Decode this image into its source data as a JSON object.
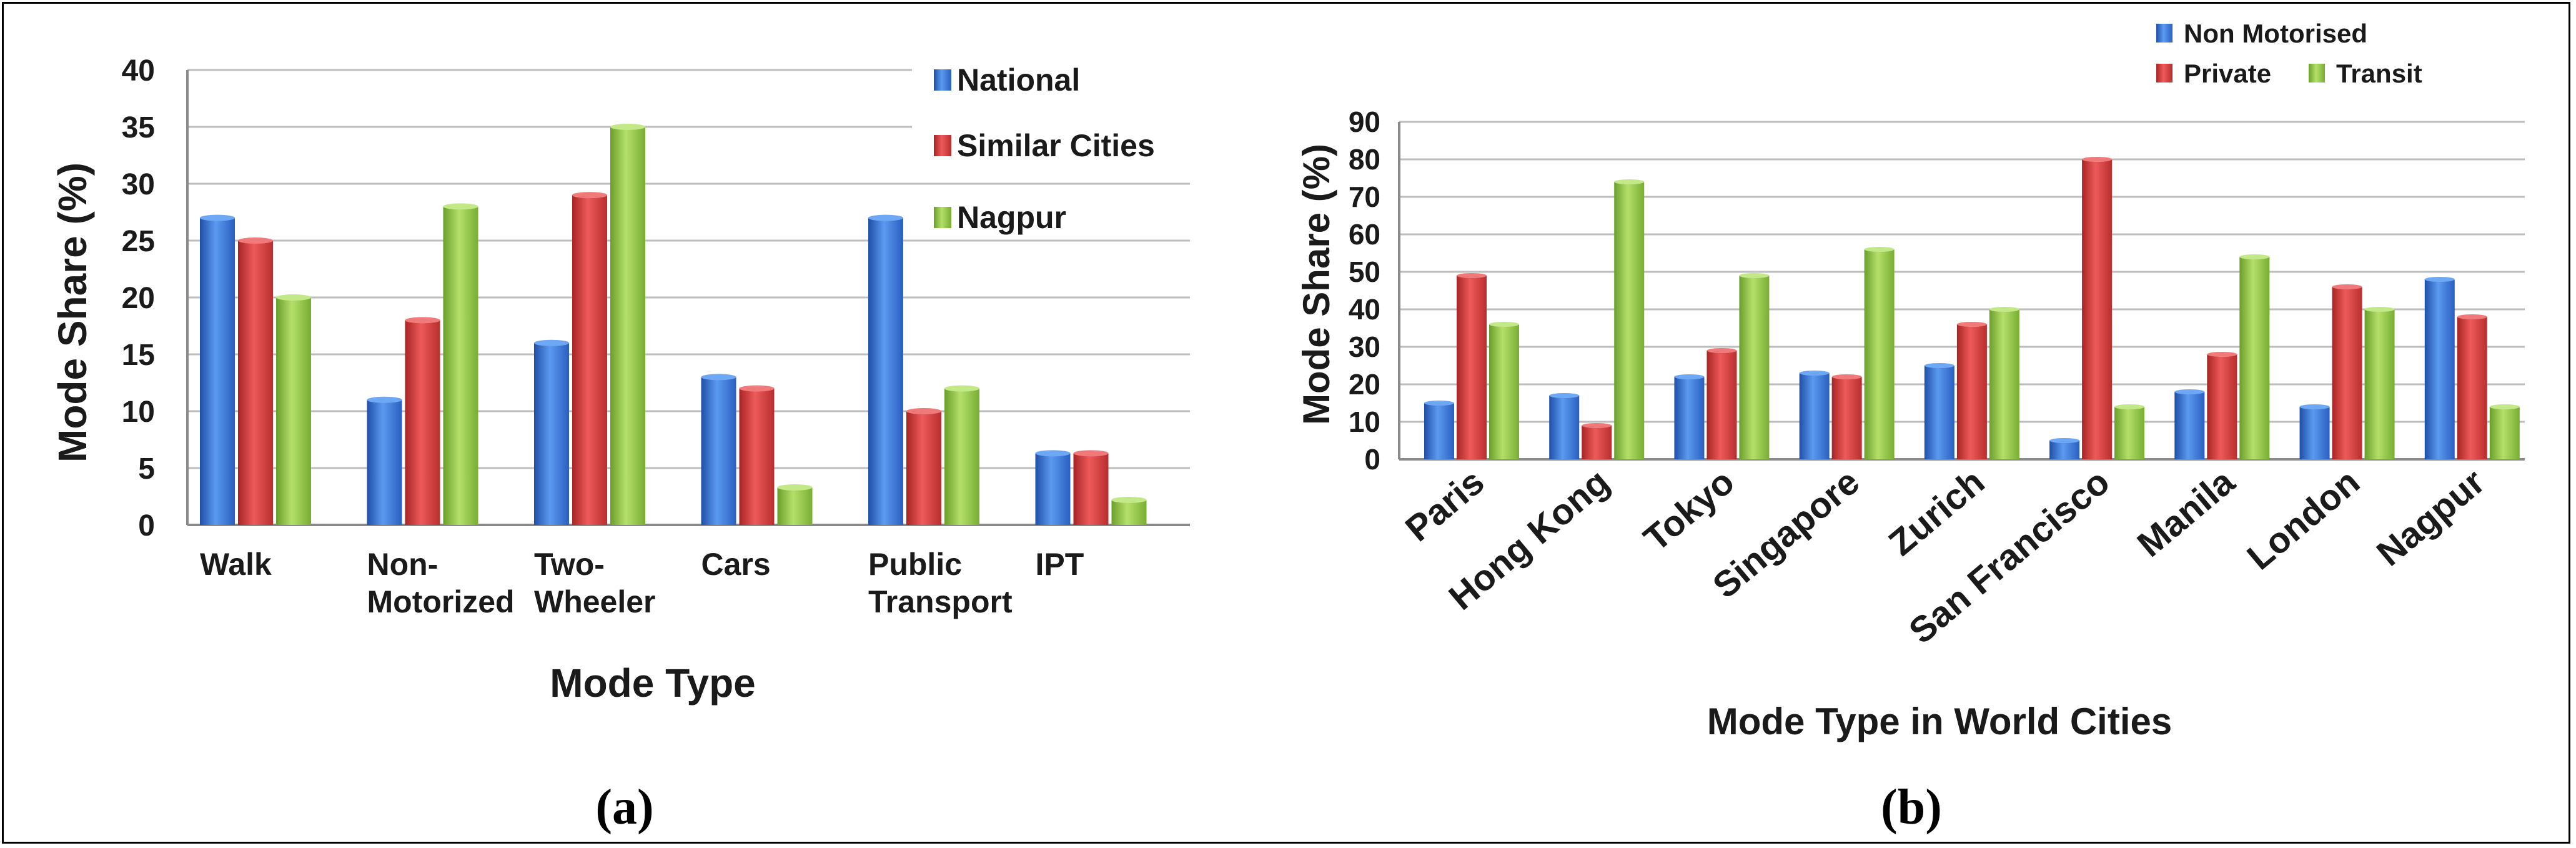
{
  "chart_data": [
    {
      "type": "bar",
      "title": "",
      "panel_label": "(a)",
      "xlabel": "Mode Type",
      "ylabel": "Mode Share (%)",
      "ylim": [
        0,
        40
      ],
      "yticks": [
        0,
        5,
        10,
        15,
        20,
        25,
        30,
        35,
        40
      ],
      "grid": true,
      "legend_position": "top-right",
      "categories": [
        [
          "Walk"
        ],
        [
          "Non-",
          "Motorized"
        ],
        [
          "Two-",
          "Wheeler"
        ],
        [
          "Cars"
        ],
        [
          "Public",
          "Transport"
        ],
        [
          "IPT"
        ]
      ],
      "series": [
        {
          "name": "National",
          "color": "#2f6fd0",
          "values": [
            27,
            11,
            16,
            13,
            27,
            6.3
          ]
        },
        {
          "name": "Similar Cities",
          "color": "#d93a3a",
          "values": [
            25,
            18,
            29,
            12,
            10,
            6.3
          ]
        },
        {
          "name": "Nagpur",
          "color": "#8ec63f",
          "values": [
            20,
            28,
            35,
            3.3,
            12,
            2.2
          ]
        }
      ]
    },
    {
      "type": "bar",
      "title": "",
      "panel_label": "(b)",
      "xlabel": "Mode Type in World Cities",
      "ylabel": "Mode Share (%)",
      "ylim": [
        0,
        90
      ],
      "yticks": [
        0,
        10,
        20,
        30,
        40,
        50,
        60,
        70,
        80,
        90
      ],
      "grid": true,
      "legend_position": "top-right",
      "categories": [
        "Paris",
        "Hong Kong",
        "Tokyo",
        "Singapore",
        "Zurich",
        "San Francisco",
        "Manila",
        "London",
        "Nagpur"
      ],
      "series": [
        {
          "name": "Non Motorised",
          "color": "#2f6fd0",
          "values": [
            15,
            17,
            22,
            23,
            25,
            5,
            18,
            14,
            48
          ]
        },
        {
          "name": "Private",
          "color": "#d93a3a",
          "values": [
            49,
            9,
            29,
            22,
            36,
            80,
            28,
            46,
            38
          ]
        },
        {
          "name": "Transit",
          "color": "#8ec63f",
          "values": [
            36,
            74,
            49,
            56,
            40,
            14,
            54,
            40,
            14
          ]
        }
      ]
    }
  ]
}
